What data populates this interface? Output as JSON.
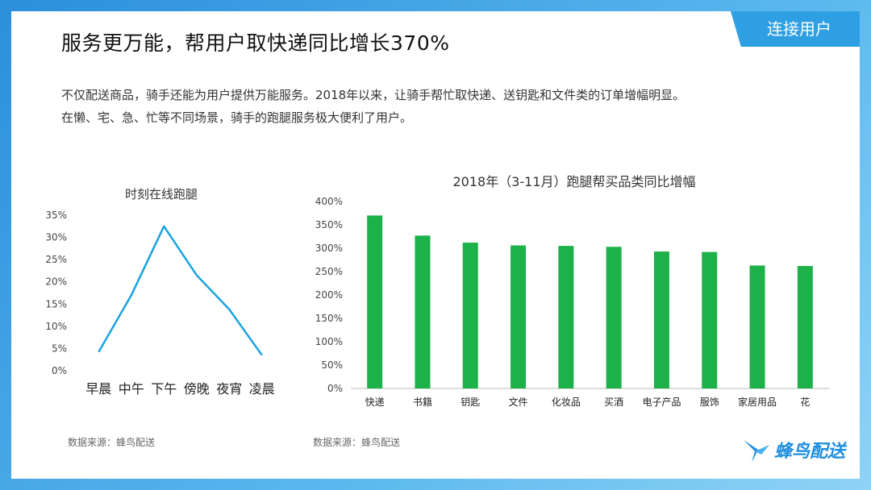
{
  "section_tab": "连接用户",
  "page_title": "服务更万能，帮用户取快递同比增长370%",
  "intro": {
    "line1": "不仅配送商品，骑手还能为用户提供万能服务。2018年以来，让骑手帮忙取快递、送钥匙和文件类的订单增幅明显。",
    "line2": "在懒、宅、急、忙等不同场景，骑手的跑腿服务极大便利了用户。"
  },
  "source_left": "数据来源：蜂鸟配送",
  "source_right": "数据来源：蜂鸟配送",
  "logo_text": "蜂鸟配送",
  "colors": {
    "line": "#1aa3df",
    "bar": "#1db14a",
    "tab": "#2f9fe3"
  },
  "chart_data": [
    {
      "type": "line",
      "title": "时刻在线跑腿",
      "categories": [
        "早晨",
        "中午",
        "下午",
        "傍晚",
        "夜宵",
        "凌晨"
      ],
      "values": [
        4.2,
        17,
        32.5,
        21.5,
        13.8,
        3.5
      ],
      "yticks": [
        "0%",
        "5%",
        "10%",
        "15%",
        "20%",
        "25%",
        "30%",
        "35%"
      ],
      "ylim": [
        0,
        35
      ],
      "unit": "%"
    },
    {
      "type": "bar",
      "title": "2018年（3-11月）跑腿帮买品类同比增幅",
      "categories": [
        "快递",
        "书籍",
        "钥匙",
        "文件",
        "化妆品",
        "买酒",
        "电子产品",
        "服饰",
        "家居用品",
        "花"
      ],
      "values": [
        370,
        327,
        312,
        306,
        305,
        303,
        293,
        292,
        263,
        262
      ],
      "yticks": [
        "0%",
        "50%",
        "100%",
        "150%",
        "200%",
        "250%",
        "300%",
        "350%",
        "400%"
      ],
      "ylim": [
        0,
        400
      ],
      "unit": "%"
    }
  ]
}
